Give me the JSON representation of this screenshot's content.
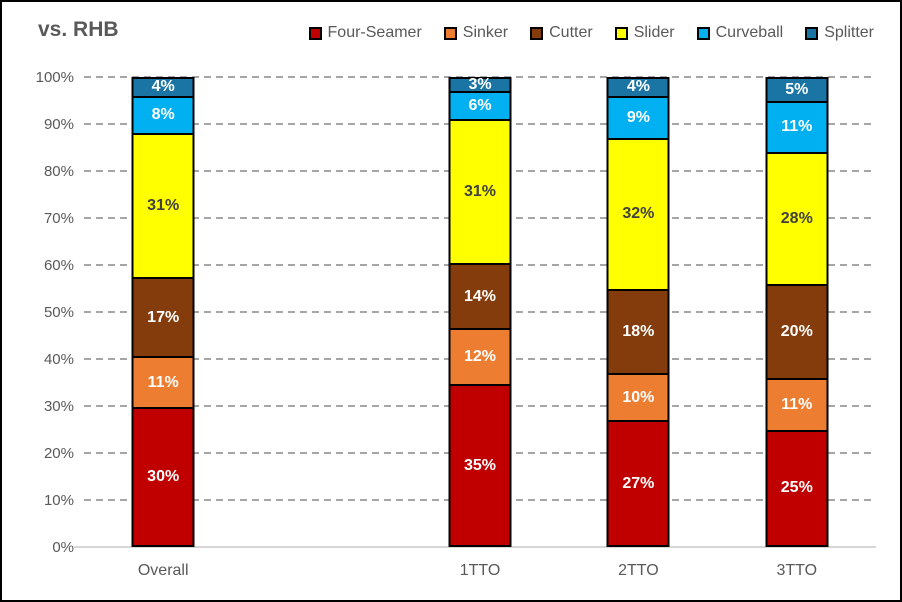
{
  "title": "vs. RHB",
  "colors": {
    "text_gray": "#595959",
    "gridline": "#a6a6a6",
    "axis_line": "#d6d6d6",
    "label_on_yellow": "#404040",
    "label_default": "#ffffff"
  },
  "chart_data": {
    "type": "bar",
    "stacked": true,
    "percent_stacked": true,
    "title": "vs. RHB",
    "categories": [
      "Overall",
      "1TTO",
      "2TTO",
      "3TTO"
    ],
    "category_slots": [
      0,
      2,
      3,
      4
    ],
    "num_slots": 5,
    "series": [
      {
        "name": "Four-Seamer",
        "color": "#c00000",
        "label_color": "#ffffff",
        "values": [
          30,
          35,
          27,
          25
        ]
      },
      {
        "name": "Sinker",
        "color": "#ed7d31",
        "label_color": "#ffffff",
        "values": [
          11,
          12,
          10,
          11
        ]
      },
      {
        "name": "Cutter",
        "color": "#843c0c",
        "label_color": "#ffffff",
        "values": [
          17,
          14,
          18,
          20
        ]
      },
      {
        "name": "Slider",
        "color": "#ffff00",
        "label_color": "#404040",
        "values": [
          31,
          31,
          32,
          28
        ]
      },
      {
        "name": "Curveball",
        "color": "#00b0f0",
        "label_color": "#ffffff",
        "values": [
          8,
          6,
          9,
          11
        ]
      },
      {
        "name": "Splitter",
        "color": "#1a74a4",
        "label_color": "#ffffff",
        "values": [
          4,
          3,
          4,
          5
        ]
      }
    ],
    "value_suffix": "%",
    "ylim": [
      0,
      100
    ],
    "yticks": [
      "0%",
      "10%",
      "20%",
      "30%",
      "40%",
      "50%",
      "60%",
      "70%",
      "80%",
      "90%",
      "100%"
    ],
    "grid": "horizontal-dashed",
    "legend_position": "top-right",
    "legend_order": [
      "Four-Seamer",
      "Sinker",
      "Cutter",
      "Slider",
      "Curveball",
      "Splitter"
    ]
  }
}
